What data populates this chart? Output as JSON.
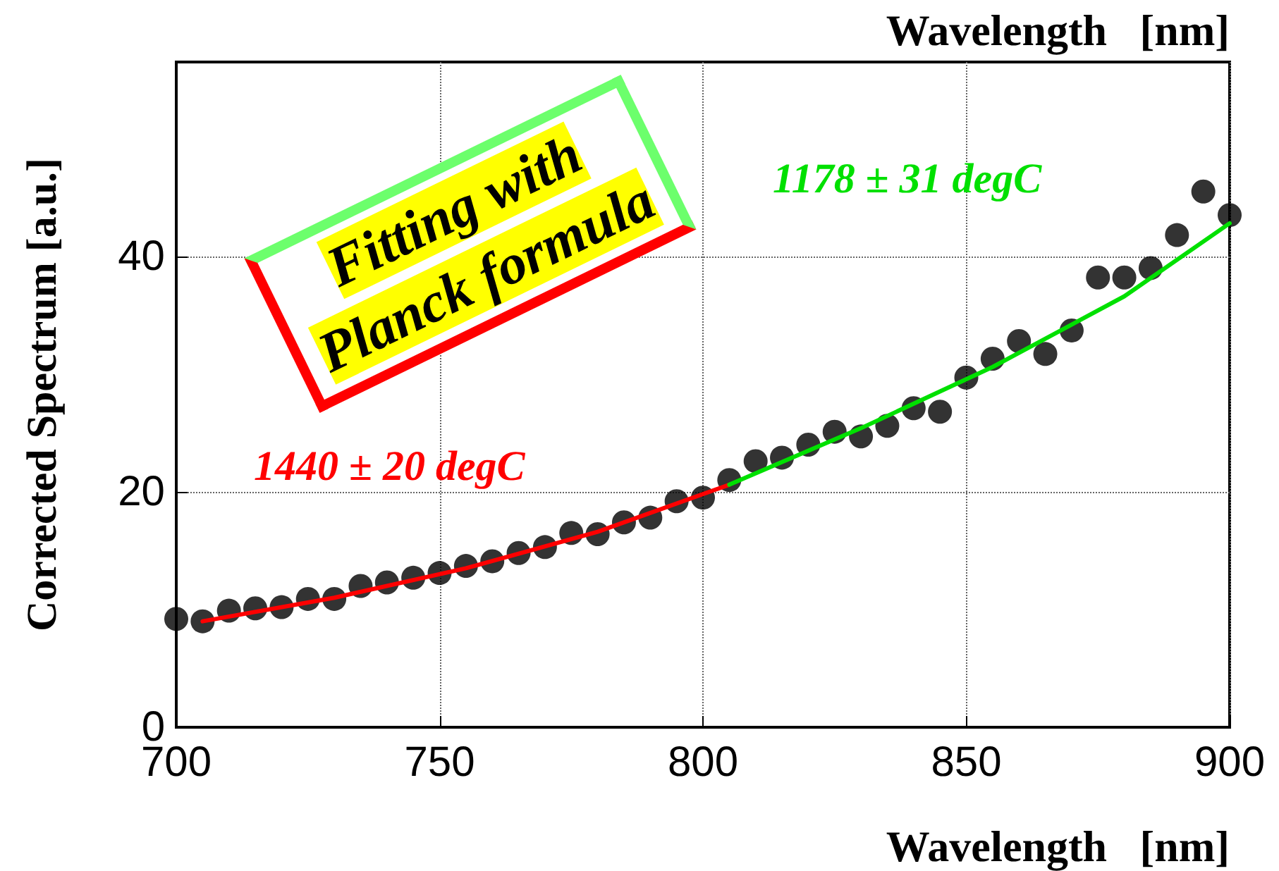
{
  "chart_data": {
    "type": "scatter",
    "xlabel": "Wavelength   [nm]",
    "ylabel": "Corrected Spectrum [a.u.]",
    "xlim": [
      700,
      900
    ],
    "xticks": [
      700,
      750,
      800,
      850,
      900
    ],
    "ylim": [
      0,
      56.5
    ],
    "yticks": [
      0,
      20,
      40
    ],
    "grid": true,
    "marker": "circle",
    "series": [
      {
        "color": "#000000",
        "x": [
          700,
          705,
          710,
          715,
          720,
          725,
          730,
          735,
          740,
          745,
          750,
          755,
          760,
          765,
          770,
          775,
          780,
          785,
          790,
          795,
          800,
          805,
          810,
          815,
          820,
          825,
          830,
          835,
          840,
          845,
          850,
          855,
          860,
          865,
          870,
          875,
          880,
          885,
          890,
          895,
          900
        ],
        "values": [
          9.2,
          9.0,
          9.9,
          10.1,
          10.2,
          10.9,
          10.9,
          12.0,
          12.3,
          12.7,
          13.1,
          13.7,
          14.1,
          14.8,
          15.3,
          16.5,
          16.4,
          17.4,
          17.8,
          19.2,
          19.5,
          21.0,
          22.6,
          22.9,
          24.0,
          25.1,
          24.7,
          25.6,
          27.1,
          26.8,
          29.7,
          31.3,
          32.8,
          31.7,
          33.7,
          38.2,
          38.2,
          39.0,
          41.8,
          45.5,
          43.5
        ]
      },
      {
        "type": "line",
        "color": "#ff0000",
        "marker": "none",
        "x": [
          705,
          730,
          755,
          780,
          805
        ],
        "values": [
          9.0,
          11.0,
          13.5,
          16.6,
          20.6
        ]
      },
      {
        "type": "line",
        "color": "#00e000",
        "marker": "none",
        "x": [
          805,
          830,
          855,
          880,
          900
        ],
        "values": [
          20.6,
          25.4,
          30.6,
          36.6,
          42.8
        ]
      }
    ],
    "annotations": [
      "1440 ± 20 degC",
      "1178 ± 31 degC",
      "Fitting with Planck formula",
      "Wavelength   [nm]"
    ]
  }
}
